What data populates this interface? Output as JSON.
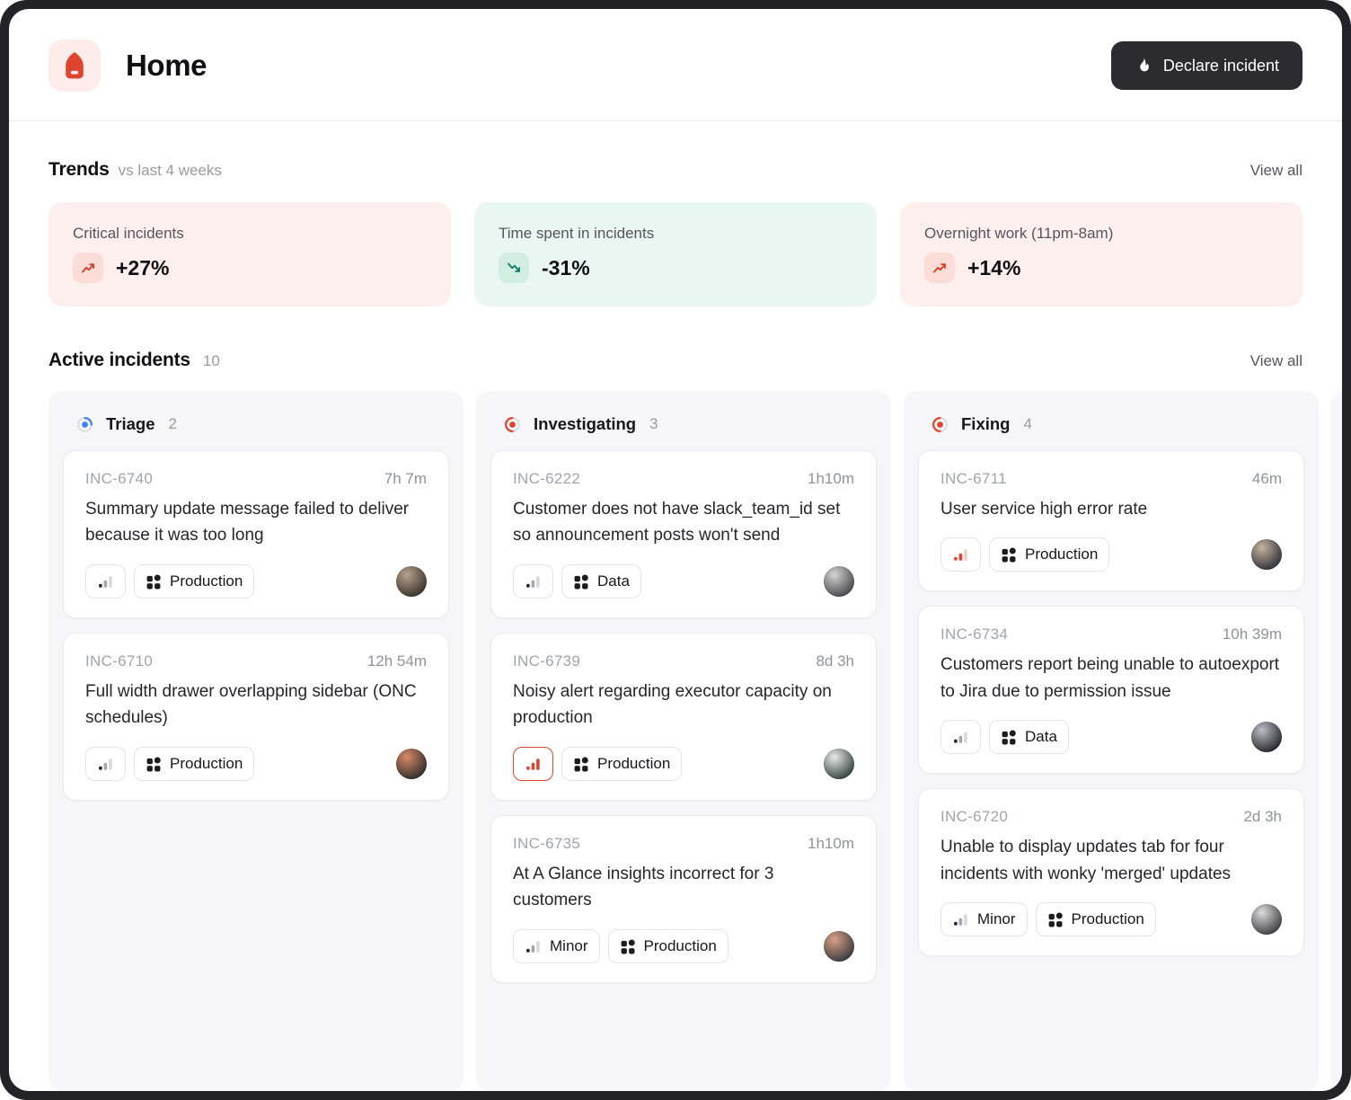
{
  "header": {
    "title": "Home",
    "declare_button": "Declare incident"
  },
  "trends": {
    "title": "Trends",
    "subtitle": "vs last 4 weeks",
    "view_all": "View all",
    "cards": [
      {
        "label": "Critical incidents",
        "value": "+27%",
        "direction": "up",
        "tone": "bad"
      },
      {
        "label": "Time spent in incidents",
        "value": "-31%",
        "direction": "down",
        "tone": "good"
      },
      {
        "label": "Overnight work (11pm-8am)",
        "value": "+14%",
        "direction": "up",
        "tone": "bad"
      }
    ]
  },
  "active_incidents": {
    "title": "Active incidents",
    "count": "10",
    "view_all": "View all",
    "columns": [
      {
        "name": "Triage",
        "count": "2",
        "icon": {
          "color": "#3b82f6",
          "fraction": 0.25,
          "start_deg": -90
        },
        "cards": [
          {
            "id": "INC-6740",
            "duration": "7h 7m",
            "title": "Summary update message failed to deliver because it was too long",
            "severity": {
              "style": "default",
              "label": ""
            },
            "team": "Production",
            "avatar": {
              "c1": "#b6a28f",
              "c2": "#41382f"
            }
          },
          {
            "id": "INC-6710",
            "duration": "12h 54m",
            "title": "Full width drawer overlapping sidebar (ONC schedules)",
            "severity": {
              "style": "default",
              "label": ""
            },
            "team": "Production",
            "avatar": {
              "c1": "#d98a66",
              "c2": "#35322f"
            }
          }
        ]
      },
      {
        "name": "Investigating",
        "count": "3",
        "icon": {
          "color": "#e0442e",
          "fraction": 0.5,
          "start_deg": 90
        },
        "cards": [
          {
            "id": "INC-6222",
            "duration": "1h10m",
            "title": "Customer does not have slack_team_id set so announcement posts won't send",
            "severity": {
              "style": "default",
              "label": ""
            },
            "team": "Data",
            "avatar": {
              "c1": "#d4d4d4",
              "c2": "#4e4e52"
            }
          },
          {
            "id": "INC-6739",
            "duration": "8d 3h",
            "title": "Noisy alert regarding executor capacity on production",
            "severity": {
              "style": "critical",
              "label": ""
            },
            "team": "Production",
            "avatar": {
              "c1": "#e9e9e9",
              "c2": "#3d4a46"
            }
          },
          {
            "id": "INC-6735",
            "duration": "1h10m",
            "title": "At A Glance insights incorrect for 3 customers",
            "severity": {
              "style": "minor",
              "label": "Minor"
            },
            "team": "Production",
            "avatar": {
              "c1": "#d8a184",
              "c2": "#3f3f43"
            }
          }
        ]
      },
      {
        "name": "Fixing",
        "count": "4",
        "icon": {
          "color": "#e0442e",
          "fraction": 0.5,
          "start_deg": 90
        },
        "cards": [
          {
            "id": "INC-6711",
            "duration": "46m",
            "title": "User service high error rate",
            "severity": {
              "style": "major",
              "label": ""
            },
            "team": "Production",
            "avatar": {
              "c1": "#c4b39e",
              "c2": "#37373f"
            }
          },
          {
            "id": "INC-6734",
            "duration": "10h 39m",
            "title": "Customers report being unable to autoexport to Jira due to permission issue",
            "severity": {
              "style": "default",
              "label": ""
            },
            "team": "Data",
            "avatar": {
              "c1": "#bdbdc6",
              "c2": "#2c2c32"
            }
          },
          {
            "id": "INC-6720",
            "duration": "2d 3h",
            "title": "Unable to display updates tab for four incidents with wonky 'merged' updates",
            "severity": {
              "style": "minor",
              "label": "Minor"
            },
            "team": "Production",
            "avatar": {
              "c1": "#dcdcdc",
              "c2": "#454549"
            }
          }
        ]
      },
      {
        "name": "",
        "count": "",
        "partial": true,
        "icon": {
          "color": "#d7d7dc",
          "fraction": 0,
          "start_deg": 0
        },
        "cards": [
          {
            "placeholder": true
          }
        ]
      }
    ]
  },
  "colors": {
    "accent_red": "#e0442e",
    "good_green": "#0d8066",
    "triage_blue": "#3b82f6",
    "button_dark": "#2c2c30"
  }
}
